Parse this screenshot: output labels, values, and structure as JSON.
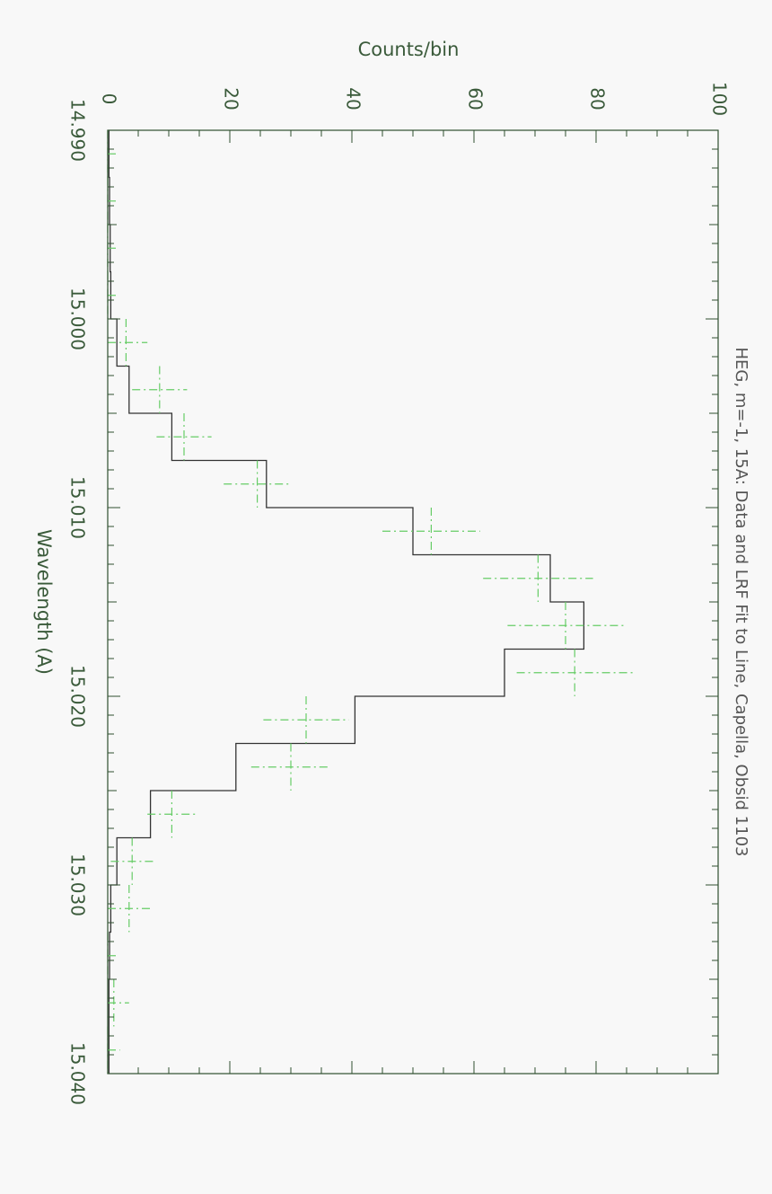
{
  "chart_data": {
    "type": "line",
    "title": "HEG, m=-1, 15A: Data and LRF Fit to Line, Capella, Obsid 1103",
    "xlabel": "Wavelength (A)",
    "ylabel": "Counts/bin",
    "xlim": [
      14.99,
      15.04
    ],
    "ylim": [
      0,
      100
    ],
    "x_ticks": [
      "14.990",
      "15.000",
      "15.010",
      "15.020",
      "15.030",
      "15.040"
    ],
    "y_ticks": [
      "0",
      "20",
      "40",
      "60",
      "80",
      "100"
    ],
    "grid": false,
    "legend": "none",
    "series": [
      {
        "style": "histogram",
        "color": "#333333",
        "bin_edges": [
          14.99,
          14.9925,
          14.995,
          14.9975,
          15.0,
          15.0025,
          15.005,
          15.0075,
          15.01,
          15.0125,
          15.015,
          15.0175,
          15.02,
          15.0225,
          15.025,
          15.0275,
          15.03,
          15.0325,
          15.035,
          15.0375,
          15.04
        ],
        "values": [
          0.2,
          0.3,
          0.4,
          0.5,
          1.5,
          3.5,
          10.5,
          26,
          50,
          72.5,
          78,
          65,
          40.5,
          21,
          7,
          1.5,
          0.5,
          0.3,
          0.2,
          0.2
        ]
      },
      {
        "style": "error-bars",
        "color": "#66cc66",
        "x": [
          14.99125,
          14.99375,
          14.99625,
          14.99875,
          15.00125,
          15.00375,
          15.00625,
          15.00875,
          15.01125,
          15.01375,
          15.01625,
          15.01875,
          15.02125,
          15.02375,
          15.02625,
          15.02875,
          15.03125,
          15.03375,
          15.03625,
          15.03875
        ],
        "y": [
          0,
          0,
          0,
          0,
          3,
          8.5,
          12.5,
          24.5,
          53,
          70.5,
          75,
          76.5,
          32.5,
          30,
          10.5,
          4,
          3.5,
          0,
          1,
          0
        ],
        "yerr": [
          1.5,
          1.5,
          1.5,
          1.5,
          3.5,
          4.5,
          4.5,
          5.5,
          8,
          9,
          9.5,
          9.5,
          7,
          6.5,
          4,
          3.5,
          3.5,
          1.5,
          2.5,
          2
        ],
        "xerr": 0.00125
      }
    ]
  }
}
